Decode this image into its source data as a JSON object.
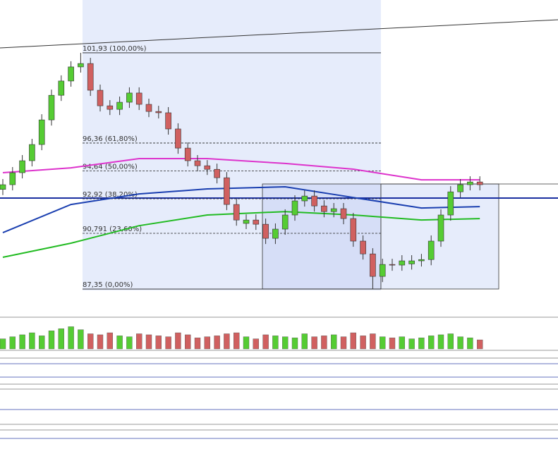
{
  "chart_data": {
    "type": "candlestick",
    "open": [
      93.5,
      93.79,
      94.53,
      95.27,
      96.27,
      97.79,
      99.31,
      100.19,
      101.06,
      101.27,
      99.62,
      98.66,
      98.44,
      98.88,
      99.45,
      98.75,
      98.31,
      98.23,
      97.23,
      96.05,
      95.27,
      94.96,
      94.74,
      94.22,
      92.57,
      91.4,
      91.61,
      91.35,
      90.48,
      91.05,
      91.92,
      92.79,
      93.09,
      92.48,
      92.13,
      92.31,
      91.7,
      90.31,
      89.52,
      88.13,
      88.87,
      88.83,
      88.9,
      89.09,
      89.17,
      90.31,
      91.92,
      93.35,
      93.79,
      93.96
    ],
    "high": [
      94.14,
      94.88,
      95.62,
      96.62,
      98.14,
      99.66,
      100.54,
      101.41,
      101.93,
      101.62,
      99.97,
      99.01,
      99.23,
      99.8,
      99.8,
      99.1,
      98.66,
      98.58,
      97.58,
      96.4,
      95.62,
      95.31,
      95.09,
      94.57,
      92.92,
      91.96,
      91.96,
      91.7,
      91.4,
      92.27,
      93.14,
      93.44,
      93.44,
      92.83,
      92.66,
      92.66,
      92.05,
      90.66,
      89.87,
      89.22,
      89.22,
      89.44,
      89.44,
      89.52,
      90.66,
      92.27,
      93.7,
      94.14,
      94.31,
      94.31
    ],
    "low": [
      93.15,
      93.44,
      94.18,
      94.92,
      95.92,
      97.44,
      98.96,
      99.84,
      100.71,
      99.27,
      98.31,
      98.09,
      98.09,
      98.53,
      98.4,
      97.96,
      97.88,
      96.88,
      95.7,
      94.92,
      94.61,
      94.39,
      93.87,
      92.22,
      91.26,
      91.05,
      91.0,
      90.13,
      90.13,
      90.7,
      91.57,
      92.44,
      92.13,
      91.78,
      91.78,
      91.35,
      89.96,
      89.17,
      87.35,
      87.78,
      88.48,
      88.48,
      88.55,
      88.74,
      88.82,
      89.96,
      91.57,
      93.0,
      93.44,
      93.44
    ],
    "close": [
      93.79,
      94.53,
      95.27,
      96.27,
      97.79,
      99.31,
      100.19,
      101.06,
      101.27,
      99.62,
      98.66,
      98.44,
      98.88,
      99.45,
      98.75,
      98.31,
      98.23,
      97.23,
      96.05,
      95.27,
      94.96,
      94.74,
      94.22,
      92.57,
      91.61,
      91.61,
      91.35,
      90.48,
      91.05,
      91.92,
      92.79,
      93.09,
      92.48,
      92.13,
      92.31,
      91.7,
      90.31,
      89.52,
      88.13,
      88.87,
      88.83,
      89.09,
      89.09,
      89.17,
      90.31,
      91.92,
      93.35,
      93.79,
      93.96,
      93.79
    ],
    "up_color": "#55cc33",
    "down_color": "#d06060",
    "ylim": [
      85.83,
      105.19
    ],
    "overlays": [
      {
        "color": "#1a3fb0",
        "x": [
          0,
          7,
          14,
          21,
          29,
          36,
          43,
          49
        ],
        "values": [
          90.83,
          92.57,
          93.22,
          93.53,
          93.66,
          93.0,
          92.35,
          92.44
        ]
      },
      {
        "color": "#22bb22",
        "x": [
          0,
          7,
          14,
          21,
          29,
          36,
          43,
          49
        ],
        "values": [
          89.31,
          90.18,
          91.26,
          91.92,
          92.13,
          91.92,
          91.61,
          91.7
        ]
      },
      {
        "color": "#dd33cc",
        "x": [
          0,
          7,
          14,
          21,
          29,
          36,
          43,
          49
        ],
        "values": [
          94.53,
          94.83,
          95.4,
          95.4,
          95.1,
          94.75,
          94.09,
          94.09
        ]
      }
    ],
    "fib_levels": [
      {
        "value": 101.93,
        "label": "101,93 (100,00%)"
      },
      {
        "value": 96.36,
        "label": "96,36 (61,80%)"
      },
      {
        "value": 94.64,
        "label": "94,64 (50,00%)"
      },
      {
        "value": 92.92,
        "label": "92,92 (38,20%)"
      },
      {
        "value": 90.791,
        "label": "90,791 (23,60%)"
      },
      {
        "value": 87.35,
        "label": "87,35 (0,00%)"
      }
    ],
    "volume": [
      10,
      12,
      14,
      16,
      13,
      18,
      20,
      22,
      19,
      15,
      14,
      16,
      13,
      12,
      15,
      14,
      13,
      12,
      16,
      14,
      11,
      12,
      13,
      15,
      16,
      12,
      10,
      14,
      13,
      12,
      11,
      15,
      12,
      13,
      14,
      12,
      16,
      13,
      15,
      12,
      11,
      12,
      10,
      11,
      13,
      14,
      15,
      12,
      11,
      9
    ],
    "volume_ylim": [
      0,
      30
    ]
  }
}
